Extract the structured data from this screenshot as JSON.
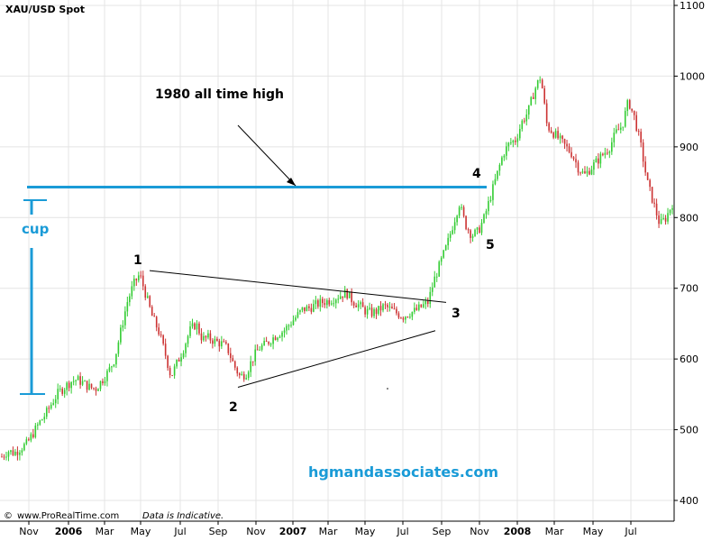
{
  "chart_data": {
    "type": "line",
    "title": "XAU/USD Spot",
    "xlabel": "",
    "ylabel": "",
    "ylim": [
      390,
      1100
    ],
    "y_ticks": [
      400,
      500,
      600,
      700,
      800,
      900,
      1000,
      1100
    ],
    "x_ticks": [
      "Nov",
      "2006",
      "Mar",
      "May",
      "Jul",
      "Sep",
      "Nov",
      "2007",
      "Mar",
      "May",
      "Jul",
      "Sep",
      "Nov",
      "2008",
      "Mar",
      "May",
      "Jul"
    ],
    "x_ticks_bold": [
      "2006",
      "2007",
      "2008"
    ],
    "grid": true,
    "series": [
      {
        "values": [
          462,
          470,
          467,
          474,
          480,
          495,
          510,
          522,
          538,
          552,
          560,
          568,
          571,
          566,
          560,
          558,
          570,
          582,
          600,
          640,
          680,
          705,
          720,
          690,
          660,
          640,
          610,
          575,
          595,
          615,
          640,
          650,
          628,
          630,
          625,
          622,
          615,
          592,
          575,
          580,
          600,
          615,
          620,
          628,
          635,
          640,
          650,
          660,
          670,
          672,
          676,
          680,
          682,
          686,
          690,
          694,
          682,
          676,
          668,
          665,
          668,
          675,
          670,
          665,
          660,
          665,
          668,
          674,
          680,
          712,
          736,
          760,
          790,
          820,
          790,
          775,
          780,
          800,
          830,
          860,
          890,
          905,
          910,
          935,
          950,
          980,
          1000,
          930,
          920,
          910,
          900,
          890,
          870,
          860,
          870,
          880,
          890,
          900,
          920,
          930,
          965,
          940,
          900,
          850,
          820,
          790,
          800,
          820
        ]
      }
    ],
    "annotations": [
      {
        "label": "1980 all time high",
        "value": 843
      },
      {
        "label": "cup"
      },
      {
        "label": "1",
        "value": 725
      },
      {
        "label": "2",
        "value": 560
      },
      {
        "label": "3",
        "value": 680
      },
      {
        "label": "4",
        "value": 843
      },
      {
        "label": "5",
        "value": 778
      }
    ],
    "footer": {
      "copyright": "©",
      "source": "www.ProRealTime.com",
      "disclaimer": "Data is Indicative."
    },
    "watermark": "hgmandassociates.com",
    "colors": {
      "up": "#33cc33",
      "down": "#cc3333",
      "annotation_line": "#1a9bd7",
      "watermark": "#1a9bd7"
    }
  }
}
